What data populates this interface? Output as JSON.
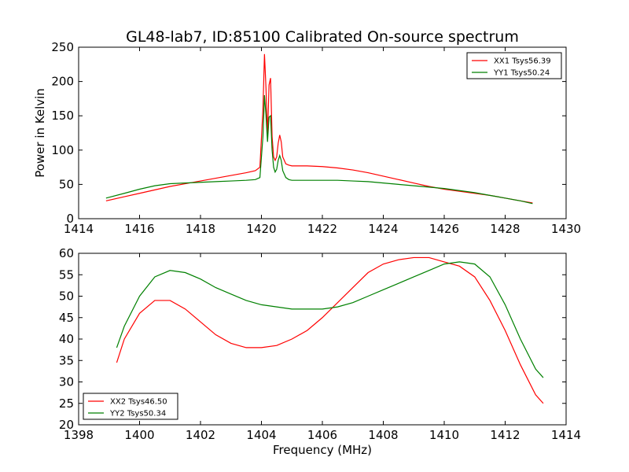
{
  "figure": {
    "title": "GL48-lab7, ID:85100 Calibrated On-source spectrum",
    "background": "#ffffff"
  },
  "chart_data": [
    {
      "type": "line",
      "title": "GL48-lab7, ID:85100 Calibrated On-source spectrum",
      "xlabel": "",
      "ylabel": "Power in Kelvin",
      "xlim": [
        1414,
        1430
      ],
      "ylim": [
        0,
        250
      ],
      "xticks": [
        1414,
        1416,
        1418,
        1420,
        1422,
        1424,
        1426,
        1428,
        1430
      ],
      "yticks": [
        0,
        50,
        100,
        150,
        200,
        250
      ],
      "grid": false,
      "legend": {
        "position": "top-right"
      },
      "series": [
        {
          "name": "XX1 Tsys56.39",
          "color": "#ff0000",
          "x": [
            1414.9,
            1415.5,
            1416.0,
            1416.5,
            1417.0,
            1417.5,
            1418.0,
            1418.5,
            1419.0,
            1419.5,
            1419.8,
            1419.95,
            1420.05,
            1420.1,
            1420.15,
            1420.2,
            1420.25,
            1420.3,
            1420.35,
            1420.4,
            1420.45,
            1420.5,
            1420.55,
            1420.6,
            1420.65,
            1420.7,
            1420.8,
            1420.9,
            1421.0,
            1421.5,
            1422.0,
            1422.5,
            1423.0,
            1423.5,
            1424.0,
            1424.5,
            1425.0,
            1425.5,
            1426.0,
            1426.5,
            1427.0,
            1427.5,
            1428.0,
            1428.5,
            1428.9
          ],
          "values": [
            26,
            32,
            37,
            42,
            47,
            51,
            55,
            59,
            63,
            67,
            70,
            75,
            160,
            240,
            190,
            120,
            195,
            205,
            120,
            90,
            85,
            90,
            110,
            122,
            112,
            90,
            80,
            78,
            77,
            77,
            76,
            74,
            71,
            67,
            62,
            57,
            52,
            47,
            43,
            40,
            37,
            34,
            30,
            26,
            23
          ]
        },
        {
          "name": "YY1 Tsys50.24",
          "color": "#008000",
          "x": [
            1414.9,
            1415.5,
            1416.0,
            1416.5,
            1417.0,
            1417.5,
            1418.0,
            1418.5,
            1419.0,
            1419.5,
            1419.8,
            1419.95,
            1420.05,
            1420.1,
            1420.15,
            1420.2,
            1420.25,
            1420.3,
            1420.35,
            1420.4,
            1420.45,
            1420.5,
            1420.55,
            1420.6,
            1420.65,
            1420.7,
            1420.8,
            1420.9,
            1421.0,
            1421.5,
            1422.0,
            1422.5,
            1423.0,
            1423.5,
            1424.0,
            1424.5,
            1425.0,
            1425.5,
            1426.0,
            1426.5,
            1427.0,
            1427.5,
            1428.0,
            1428.5,
            1428.9
          ],
          "values": [
            30,
            37,
            43,
            48,
            51,
            52,
            53,
            54,
            55,
            56,
            57,
            60,
            120,
            180,
            150,
            112,
            148,
            150,
            100,
            75,
            68,
            72,
            85,
            92,
            85,
            70,
            60,
            57,
            56,
            56,
            56,
            56,
            55,
            54,
            52,
            50,
            48,
            46,
            44,
            41,
            38,
            34,
            30,
            26,
            22
          ]
        }
      ]
    },
    {
      "type": "line",
      "title": "",
      "xlabel": "Frequency (MHz)",
      "ylabel": "",
      "xlim": [
        1398,
        1414
      ],
      "ylim": [
        20,
        60
      ],
      "xticks": [
        1398,
        1400,
        1402,
        1404,
        1406,
        1408,
        1410,
        1412,
        1414
      ],
      "yticks": [
        20,
        25,
        30,
        35,
        40,
        45,
        50,
        55,
        60
      ],
      "grid": false,
      "legend": {
        "position": "bottom-left"
      },
      "series": [
        {
          "name": "XX2 Tsys46.50",
          "color": "#ff0000",
          "x": [
            1399.25,
            1399.5,
            1400.0,
            1400.5,
            1401.0,
            1401.5,
            1402.0,
            1402.5,
            1403.0,
            1403.5,
            1404.0,
            1404.5,
            1405.0,
            1405.5,
            1406.0,
            1406.5,
            1407.0,
            1407.5,
            1408.0,
            1408.5,
            1409.0,
            1409.5,
            1410.0,
            1410.5,
            1411.0,
            1411.5,
            1412.0,
            1412.5,
            1413.0,
            1413.25
          ],
          "values": [
            34.5,
            40,
            46,
            49,
            49,
            47,
            44,
            41,
            39,
            38,
            38,
            38.5,
            40,
            42,
            45,
            48.5,
            52,
            55.5,
            57.5,
            58.5,
            59,
            59,
            58,
            57,
            54.5,
            49,
            42,
            34,
            27,
            25
          ]
        },
        {
          "name": "YY2 Tsys50.34",
          "color": "#008000",
          "x": [
            1399.25,
            1399.5,
            1400.0,
            1400.5,
            1401.0,
            1401.5,
            1402.0,
            1402.5,
            1403.0,
            1403.5,
            1404.0,
            1404.5,
            1405.0,
            1405.5,
            1406.0,
            1406.5,
            1407.0,
            1407.5,
            1408.0,
            1408.5,
            1409.0,
            1409.5,
            1410.0,
            1410.5,
            1411.0,
            1411.5,
            1412.0,
            1412.5,
            1413.0,
            1413.25
          ],
          "values": [
            38,
            43,
            50,
            54.5,
            56,
            55.5,
            54,
            52,
            50.5,
            49,
            48,
            47.5,
            47,
            47,
            47,
            47.5,
            48.5,
            50,
            51.5,
            53,
            54.5,
            56,
            57.5,
            58,
            57.5,
            54.5,
            48,
            40,
            33,
            31
          ]
        }
      ]
    }
  ]
}
